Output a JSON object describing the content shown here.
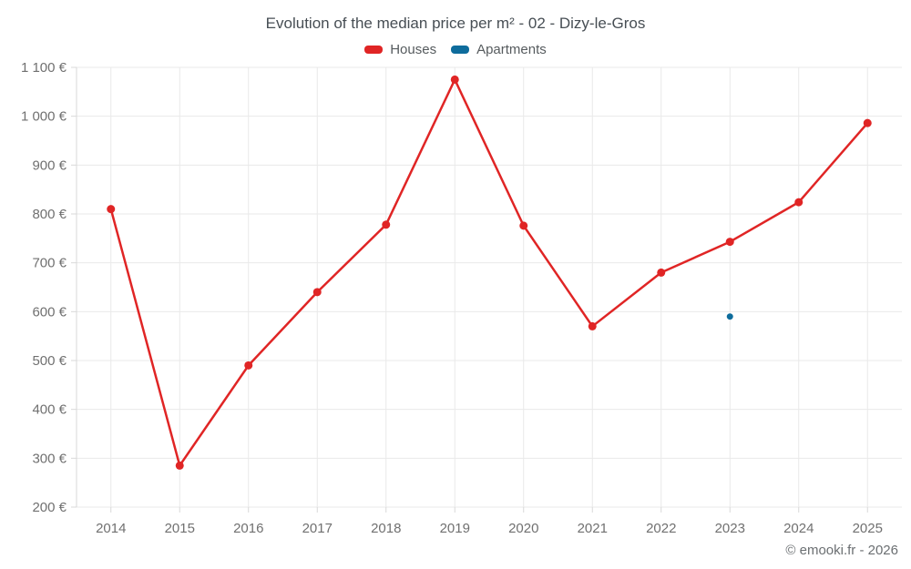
{
  "header": {
    "title": "Evolution of the median price per m² - 02 - Dizy-le-Gros"
  },
  "footer": {
    "copyright": "© emooki.fr - 2026"
  },
  "colors": {
    "houses": "#e02525",
    "apartments": "#0e6c9c",
    "grid": "#e9e9e9",
    "axis": "#d9d9d9",
    "tick_label": "#707070"
  },
  "chart_data": {
    "type": "line",
    "title": "Evolution of the median price per m² - 02 - Dizy-le-Gros",
    "categories": [
      "2014",
      "2015",
      "2016",
      "2017",
      "2018",
      "2019",
      "2020",
      "2021",
      "2022",
      "2023",
      "2024",
      "2025"
    ],
    "series": [
      {
        "name": "Houses",
        "color": "#e02525",
        "values": [
          810,
          285,
          490,
          640,
          778,
          1075,
          776,
          570,
          680,
          743,
          824,
          986
        ]
      },
      {
        "name": "Apartments",
        "color": "#0e6c9c",
        "values": [
          null,
          null,
          null,
          null,
          null,
          null,
          null,
          null,
          null,
          590,
          null,
          null
        ]
      }
    ],
    "ylim": [
      200,
      1100
    ],
    "ytick_step": 100,
    "y_unit": "€",
    "grid": true,
    "legend_position": "top"
  }
}
